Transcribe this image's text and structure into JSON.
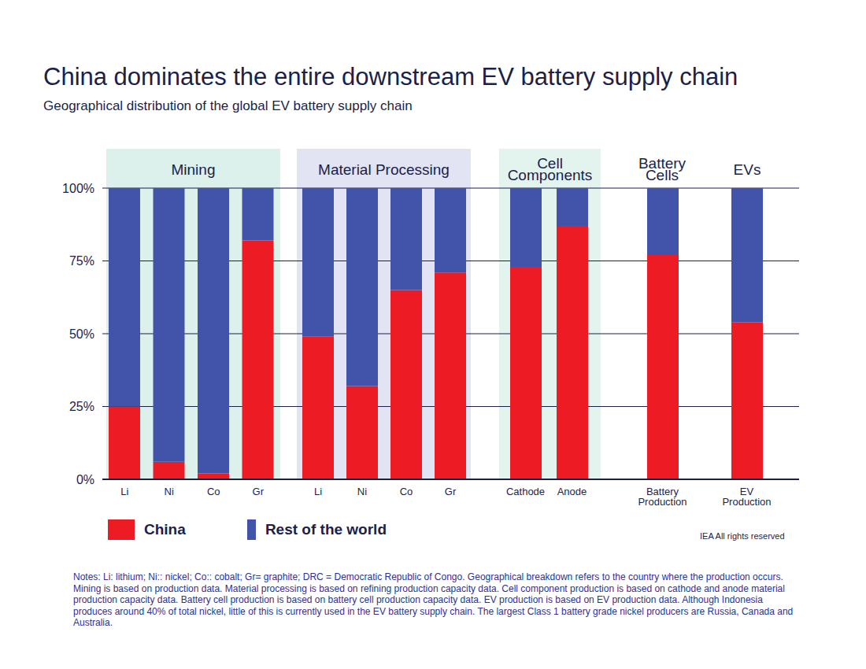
{
  "chart_data": {
    "type": "bar",
    "title": "China dominates the entire downstream EV battery supply chain",
    "subtitle": "Geographical distribution of the global EV battery supply chain",
    "groups": [
      {
        "label": "Mining",
        "categories": [
          "Li",
          "Ni",
          "Co",
          "Gr"
        ]
      },
      {
        "label": "Material Processing",
        "categories": [
          "Li",
          "Ni",
          "Co",
          "Gr"
        ]
      },
      {
        "label": "Cell Components",
        "categories": [
          "Cathode",
          "Anode"
        ]
      },
      {
        "label": "Battery Cells",
        "categories": [
          "Battery Production"
        ]
      },
      {
        "label": "EVs",
        "categories": [
          "EV Production"
        ]
      }
    ],
    "categories": [
      "Li",
      "Ni",
      "Co",
      "Gr",
      "Li",
      "Ni",
      "Co",
      "Gr",
      "Cathode",
      "Anode",
      "Battery Production",
      "EV Production"
    ],
    "series": [
      {
        "name": "China",
        "color": "#ed1c24",
        "values": [
          25,
          6,
          2,
          82,
          49,
          32,
          65,
          71,
          73,
          87,
          77,
          54
        ]
      },
      {
        "name": "Rest of the world",
        "color": "#4154a9",
        "values": [
          75,
          94,
          98,
          18,
          51,
          68,
          35,
          29,
          27,
          13,
          23,
          46
        ]
      }
    ],
    "stacked": true,
    "ylim": [
      0,
      100
    ],
    "yticks": [
      {
        "value": 0,
        "label": "0%"
      },
      {
        "value": 25,
        "label": "25%"
      },
      {
        "value": 50,
        "label": "50%"
      },
      {
        "value": 75,
        "label": "75%"
      },
      {
        "value": 100,
        "label": "100%"
      }
    ],
    "grid": true,
    "legend": "bottom left",
    "source": "IEA All rights reserved",
    "notes": "Notes: Li: lithium; Ni:: nickel; Co:: cobalt; Gr= graphite; DRC = Democratic Republic of Congo. Geographical breakdown refers to the country where the production occurs. Mining is based on production data. Material processing is based on refining production capacity data. Cell component production is based on cathode and anode material production capacity data. Battery cell production is based on battery cell production capacity data. EV production is based on EV production data. Although Indonesia produces around 40% of total nickel, little of this is currently used in the EV battery supply chain. The largest Class 1 battery grade nickel producers are Russia, Canada and Australia."
  }
}
